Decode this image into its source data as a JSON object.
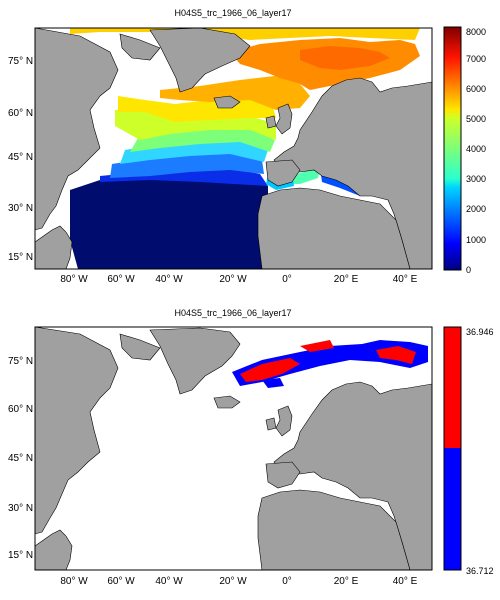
{
  "panels": [
    {
      "title": "H04S5_trc_1966_06_layer17",
      "x_ticks": [
        "80° W",
        "60° W",
        "40° W",
        "20° W",
        "0°",
        "20° E",
        "40° E"
      ],
      "y_ticks": [
        "75° N",
        "60° N",
        "45° N",
        "30° N",
        "15° N"
      ],
      "colorbar": {
        "type": "continuous",
        "colormap": "jet",
        "ticks": [
          "8000",
          "7000",
          "6000",
          "5000",
          "4000",
          "3000",
          "2000",
          "1000",
          "0"
        ],
        "range": [
          0,
          8000
        ]
      }
    },
    {
      "title": "H04S5_trc_1966_06_layer17",
      "x_ticks": [
        "80° W",
        "60° W",
        "40° W",
        "20° W",
        "0°",
        "20° E",
        "40° E"
      ],
      "y_ticks": [
        "75° N",
        "60° N",
        "45° N",
        "30° N",
        "15° N"
      ],
      "colorbar": {
        "type": "two-class",
        "ticks": [
          "36.946",
          "36.712"
        ],
        "colors": [
          "#ff0000",
          "#0000ff"
        ]
      }
    }
  ],
  "colors": {
    "land": "#a0a0a0",
    "ocean_no_data": "#ffffff",
    "coast": "#000000"
  }
}
